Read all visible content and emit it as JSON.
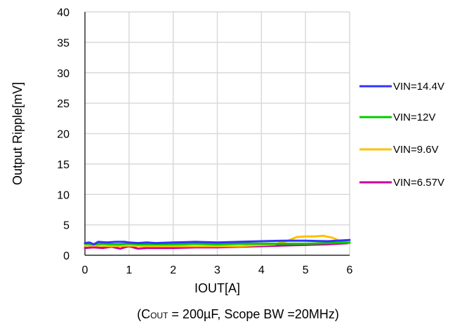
{
  "chart_data": {
    "type": "line",
    "xlabel": "IOUT[A]",
    "ylabel": "Output Ripple[mV]",
    "xlim": [
      0,
      6
    ],
    "ylim": [
      0,
      40
    ],
    "x_ticks": [
      "0",
      "1",
      "2",
      "3",
      "4",
      "5",
      "6"
    ],
    "y_ticks": [
      "0",
      "5",
      "10",
      "15",
      "20",
      "25",
      "30",
      "35",
      "40"
    ],
    "grid": true,
    "legend_position": "right",
    "caption": {
      "prefix": "(C",
      "subscript": "OUT",
      "suffix": " = 200µF, Scope BW =20MHz)"
    },
    "series": [
      {
        "name": "VIN=14.4V",
        "color": "#3333ff",
        "x": [
          0,
          0.1,
          0.2,
          0.3,
          0.5,
          0.7,
          0.9,
          1.0,
          1.2,
          1.4,
          1.6,
          2.0,
          2.5,
          3.0,
          3.5,
          4.0,
          4.5,
          5.0,
          5.5,
          6.0
        ],
        "y": [
          2.0,
          2.1,
          1.8,
          2.2,
          2.1,
          2.2,
          2.2,
          2.1,
          2.0,
          2.1,
          2.0,
          2.1,
          2.2,
          2.1,
          2.2,
          2.3,
          2.4,
          2.4,
          2.3,
          2.5
        ]
      },
      {
        "name": "VIN=12V",
        "color": "#00cc00",
        "x": [
          0,
          0.2,
          0.4,
          0.6,
          0.8,
          1.0,
          1.2,
          1.5,
          2.0,
          2.5,
          3.0,
          3.5,
          4.0,
          4.5,
          5.0,
          5.5,
          6.0
        ],
        "y": [
          1.9,
          1.8,
          1.9,
          1.8,
          1.8,
          1.9,
          1.8,
          1.8,
          1.8,
          1.9,
          1.8,
          1.9,
          1.9,
          1.9,
          1.9,
          2.0,
          2.1
        ]
      },
      {
        "name": "VIN=9.6V",
        "color": "#ffc000",
        "x": [
          0,
          0.3,
          0.6,
          1.0,
          1.5,
          2.0,
          2.5,
          3.0,
          3.5,
          4.0,
          4.3,
          4.6,
          4.8,
          5.0,
          5.2,
          5.4,
          5.6,
          5.8,
          6.0
        ],
        "y": [
          1.6,
          1.6,
          1.5,
          1.6,
          1.5,
          1.5,
          1.5,
          1.5,
          1.5,
          1.7,
          1.8,
          2.4,
          3.0,
          3.1,
          3.1,
          3.2,
          2.9,
          2.3,
          2.0
        ]
      },
      {
        "name": "VIN=6.57V",
        "color": "#cc0099",
        "x": [
          0,
          0.2,
          0.4,
          0.6,
          0.8,
          0.9,
          1.0,
          1.2,
          1.4,
          1.6,
          1.8,
          2.0,
          2.5,
          3.0,
          3.5,
          4.0,
          4.5,
          5.0,
          5.5,
          6.0
        ],
        "y": [
          1.2,
          1.3,
          1.2,
          1.4,
          1.1,
          1.3,
          1.5,
          1.1,
          1.2,
          1.2,
          1.2,
          1.2,
          1.3,
          1.3,
          1.4,
          1.5,
          1.6,
          1.7,
          1.8,
          2.0
        ]
      }
    ]
  }
}
